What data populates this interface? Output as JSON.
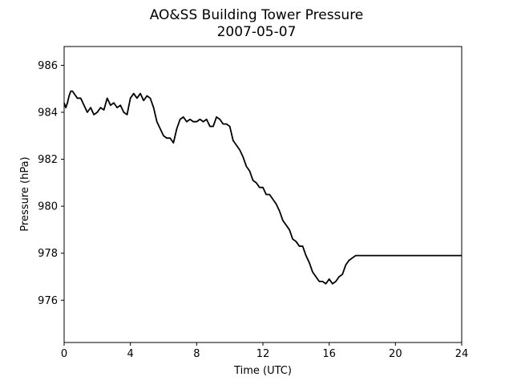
{
  "chart_data": {
    "type": "line",
    "title": "AO&SS Building Tower Pressure",
    "subtitle": "2007-05-07",
    "xlabel": "Time (UTC)",
    "ylabel": "Pressure (hPa)",
    "xlim": [
      0,
      24
    ],
    "ylim": [
      974.2,
      986.8
    ],
    "xticks": [
      0,
      4,
      8,
      12,
      16,
      20,
      24
    ],
    "yticks": [
      976,
      978,
      980,
      982,
      984,
      986
    ],
    "grid": false,
    "legend": "none",
    "series": [
      {
        "color": "#000000",
        "x": [
          0.0,
          0.1,
          0.2,
          0.3,
          0.4,
          0.5,
          0.6,
          0.7,
          0.8,
          1.0,
          1.2,
          1.4,
          1.6,
          1.8,
          2.0,
          2.2,
          2.4,
          2.6,
          2.8,
          3.0,
          3.2,
          3.4,
          3.6,
          3.8,
          4.0,
          4.2,
          4.4,
          4.6,
          4.8,
          5.0,
          5.2,
          5.4,
          5.6,
          5.8,
          6.0,
          6.2,
          6.4,
          6.6,
          6.8,
          7.0,
          7.2,
          7.4,
          7.6,
          7.8,
          8.0,
          8.2,
          8.4,
          8.6,
          8.8,
          9.0,
          9.2,
          9.4,
          9.6,
          9.8,
          10.0,
          10.2,
          10.4,
          10.6,
          10.8,
          11.0,
          11.2,
          11.4,
          11.6,
          11.8,
          12.0,
          12.2,
          12.4,
          12.6,
          12.8,
          13.0,
          13.2,
          13.4,
          13.6,
          13.8,
          14.0,
          14.2,
          14.4,
          14.6,
          14.8,
          15.0,
          15.2,
          15.4,
          15.6,
          15.8,
          16.0,
          16.2,
          16.4,
          16.6,
          16.8,
          17.0,
          17.2,
          17.4,
          17.6,
          17.8,
          18.0,
          18.2,
          18.4,
          18.6,
          18.8,
          19.0,
          19.2,
          19.4,
          19.6,
          19.8,
          20.0,
          20.2,
          20.4,
          20.6,
          20.8,
          21.0,
          21.2,
          21.4,
          21.6,
          21.8,
          22.0,
          22.2,
          22.4,
          22.6,
          22.8,
          23.0,
          23.2,
          23.4,
          23.6,
          23.8,
          24.0
        ],
        "y": [
          984.4,
          984.2,
          984.4,
          984.7,
          984.9,
          984.9,
          984.8,
          984.7,
          984.6,
          984.6,
          984.3,
          984.0,
          984.2,
          983.9,
          984.0,
          984.2,
          984.1,
          984.6,
          984.3,
          984.4,
          984.2,
          984.3,
          984.0,
          983.9,
          984.6,
          984.8,
          984.6,
          984.8,
          984.5,
          984.7,
          984.6,
          984.2,
          983.6,
          983.3,
          983.0,
          982.9,
          982.9,
          982.7,
          983.3,
          983.7,
          983.8,
          983.6,
          983.7,
          983.6,
          983.6,
          983.7,
          983.6,
          983.7,
          983.4,
          983.4,
          983.8,
          983.7,
          983.5,
          983.5,
          983.4,
          982.8,
          982.6,
          982.4,
          982.1,
          981.7,
          981.5,
          981.1,
          981.0,
          980.8,
          980.8,
          980.5,
          980.5,
          980.3,
          980.1,
          979.8,
          979.4,
          979.2,
          979.0,
          978.6,
          978.5,
          978.3,
          978.3,
          977.9,
          977.6,
          977.2,
          977.0,
          976.8,
          976.8,
          976.7,
          976.9,
          976.7,
          976.8,
          977.0,
          977.1,
          977.5,
          977.7,
          977.8,
          977.9,
          977.9,
          977.9,
          977.9,
          977.9,
          977.9,
          977.9,
          977.9,
          977.9,
          977.9,
          977.9,
          977.9,
          977.9,
          977.9,
          977.9,
          977.9,
          977.9,
          977.9,
          977.9,
          977.9,
          977.9,
          977.9,
          977.9,
          977.9,
          977.9,
          977.9,
          977.9,
          977.9,
          977.9,
          977.9,
          977.9,
          977.9,
          977.9
        ]
      }
    ]
  }
}
